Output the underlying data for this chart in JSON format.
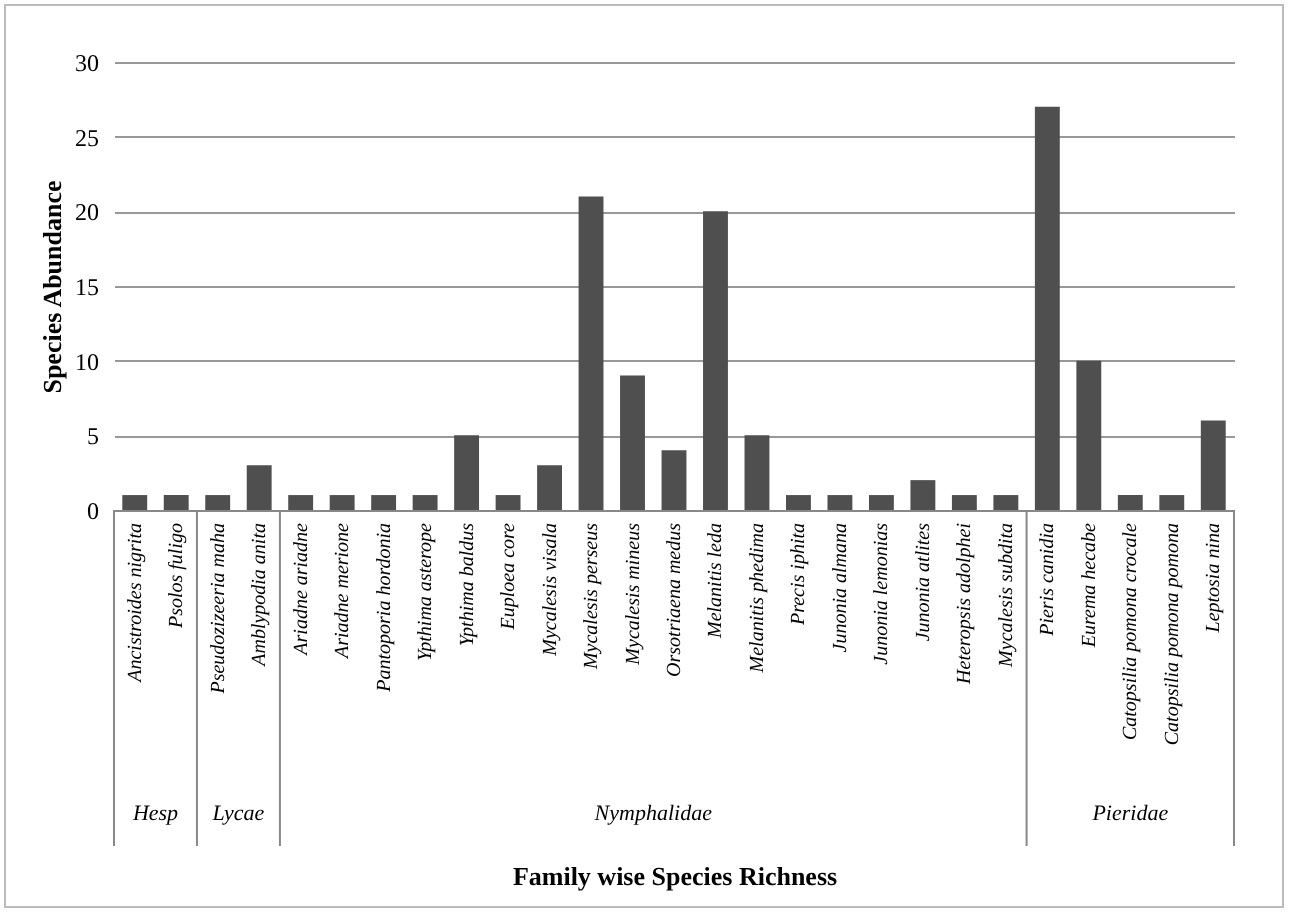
{
  "chart_data": {
    "type": "bar",
    "categories": [
      "Ancistroides nigrita",
      "Psolos fuligo",
      "Pseudozizeeria maha",
      "Amblypodia anita",
      "Ariadne ariadne",
      "Ariadne merione",
      "Pantoporia hordonia",
      "Ypthima asterope",
      "Ypthima baldus",
      "Euploea core",
      "Mycalesis visala",
      "Mycalesis perseus",
      "Mycalesis mineus",
      "Orsotriaena medus",
      "Melanitis leda",
      "Melanitis phedima",
      "Precis iphita",
      "Junonia almana",
      "Junonia lemonias",
      "Junonia atlites",
      "Heteropsis adolphei",
      "Mycalesis subdita",
      "Pieris canidia",
      "Eurema hecabe",
      "Catopsilia pomona crocale",
      "Catopsilia pomona pomona",
      "Leptosia nina"
    ],
    "values": [
      1,
      1,
      1,
      3,
      1,
      1,
      1,
      1,
      5,
      1,
      3,
      21,
      9,
      4,
      20,
      5,
      1,
      1,
      1,
      2,
      1,
      1,
      27,
      10,
      1,
      1,
      6
    ],
    "color": "#4f4f4f",
    "xlabel": "Family wise Species Richness",
    "ylabel": "Species Abundance",
    "ylim": [
      0,
      30
    ],
    "yticks": [
      0,
      5,
      10,
      15,
      20,
      25,
      30
    ],
    "grid": "y",
    "annotations": [
      "Hesp",
      "Lycae",
      "Nymphalidae",
      "Pieridae"
    ]
  }
}
